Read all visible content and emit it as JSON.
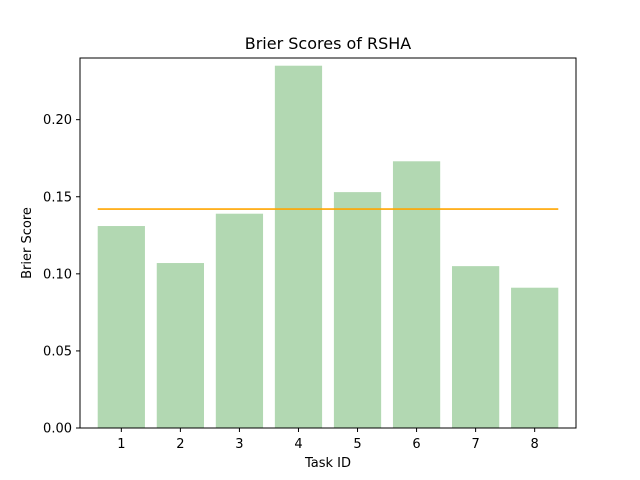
{
  "chart_data": {
    "type": "bar",
    "title": "Brier Scores of RSHA",
    "xlabel": "Task ID",
    "ylabel": "Brier Score",
    "categories": [
      "1",
      "2",
      "3",
      "4",
      "5",
      "6",
      "7",
      "8"
    ],
    "values": [
      0.131,
      0.107,
      0.139,
      0.235,
      0.153,
      0.173,
      0.105,
      0.091
    ],
    "reference_line": {
      "value": 0.142,
      "color": "#ffa500"
    },
    "yticks": [
      "0.00",
      "0.05",
      "0.10",
      "0.15",
      "0.20"
    ],
    "ylim": [
      0,
      0.24
    ],
    "grid": false,
    "bar_color": "#b2d8b2"
  }
}
